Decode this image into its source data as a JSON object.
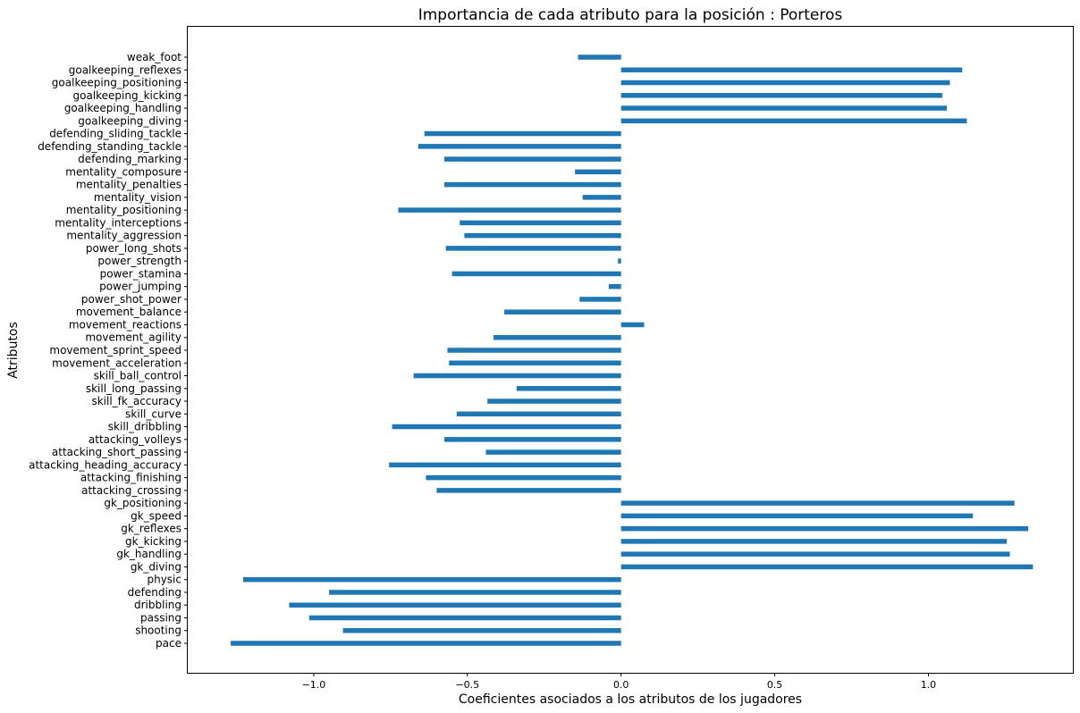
{
  "chart_data": {
    "type": "bar",
    "orientation": "horizontal",
    "title": "Importancia de cada atributo para la posición : Porteros",
    "xlabel": "Coeficientes asociados a los atributos de los jugadores",
    "ylabel": "Atributos",
    "xlim": [
      -1.41,
      1.47
    ],
    "xticks": [
      -1.0,
      -0.5,
      0.0,
      0.5,
      1.0
    ],
    "xtick_labels": [
      "−1.0",
      "−0.5",
      "0.0",
      "0.5",
      "1.0"
    ],
    "grid": false,
    "color": "#1f77b4",
    "categories": [
      "pace",
      "shooting",
      "passing",
      "dribbling",
      "defending",
      "physic",
      "gk_diving",
      "gk_handling",
      "gk_kicking",
      "gk_reflexes",
      "gk_speed",
      "gk_positioning",
      "attacking_crossing",
      "attacking_finishing",
      "attacking_heading_accuracy",
      "attacking_short_passing",
      "attacking_volleys",
      "skill_dribbling",
      "skill_curve",
      "skill_fk_accuracy",
      "skill_long_passing",
      "skill_ball_control",
      "movement_acceleration",
      "movement_sprint_speed",
      "movement_agility",
      "movement_reactions",
      "movement_balance",
      "power_shot_power",
      "power_jumping",
      "power_stamina",
      "power_strength",
      "power_long_shots",
      "mentality_aggression",
      "mentality_interceptions",
      "mentality_positioning",
      "mentality_vision",
      "mentality_penalties",
      "mentality_composure",
      "defending_marking",
      "defending_standing_tackle",
      "defending_sliding_tackle",
      "goalkeeping_diving",
      "goalkeeping_handling",
      "goalkeeping_kicking",
      "goalkeeping_positioning",
      "goalkeeping_reflexes",
      "weak_foot"
    ],
    "values": [
      -1.27,
      -0.905,
      -1.015,
      -1.08,
      -0.95,
      -1.23,
      1.34,
      1.265,
      1.255,
      1.325,
      1.145,
      1.28,
      -0.6,
      -0.635,
      -0.755,
      -0.44,
      -0.575,
      -0.745,
      -0.535,
      -0.435,
      -0.34,
      -0.675,
      -0.56,
      -0.565,
      -0.415,
      0.075,
      -0.38,
      -0.135,
      -0.04,
      -0.55,
      -0.01,
      -0.57,
      -0.51,
      -0.525,
      -0.725,
      -0.125,
      -0.575,
      -0.15,
      -0.575,
      -0.66,
      -0.64,
      1.125,
      1.06,
      1.045,
      1.07,
      1.11,
      -0.14
    ]
  }
}
